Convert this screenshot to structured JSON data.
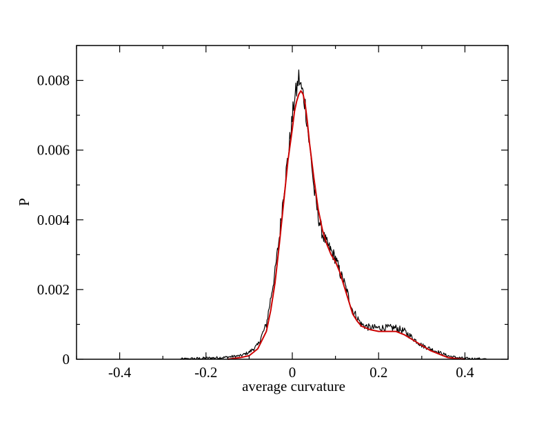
{
  "chart_data": {
    "type": "line",
    "title": "",
    "xlabel": "average curvature",
    "ylabel": "P",
    "xlim": [
      -0.5,
      0.5
    ],
    "ylim": [
      0,
      0.009
    ],
    "grid": false,
    "legend": "none",
    "x_ticks": [
      -0.4,
      -0.2,
      0,
      0.2,
      0.4
    ],
    "x_tick_labels": [
      "-0.4",
      "-0.2",
      "0",
      "0.2",
      "0.4"
    ],
    "y_ticks": [
      0,
      0.002,
      0.004,
      0.006,
      0.008
    ],
    "y_tick_labels": [
      "0",
      "0.002",
      "0.004",
      "0.006",
      "0.008"
    ],
    "series": [
      {
        "color": "#000000",
        "style": "noisy histogram",
        "x": [
          -0.26,
          -0.2,
          -0.16,
          -0.12,
          -0.1,
          -0.08,
          -0.06,
          -0.04,
          -0.03,
          -0.02,
          -0.01,
          0.0,
          0.005,
          0.01,
          0.015,
          0.02,
          0.025,
          0.03,
          0.035,
          0.04,
          0.045,
          0.05,
          0.06,
          0.07,
          0.08,
          0.09,
          0.1,
          0.11,
          0.12,
          0.13,
          0.14,
          0.16,
          0.18,
          0.2,
          0.22,
          0.24,
          0.26,
          0.28,
          0.3,
          0.32,
          0.34,
          0.36,
          0.38,
          0.4,
          0.42,
          0.45
        ],
        "y": [
          0.0,
          3e-05,
          5e-05,
          0.0001,
          0.0002,
          0.0004,
          0.001,
          0.0025,
          0.0035,
          0.0048,
          0.0058,
          0.0069,
          0.0075,
          0.0077,
          0.0081,
          0.0078,
          0.0076,
          0.0073,
          0.0067,
          0.0061,
          0.0056,
          0.0049,
          0.0041,
          0.0036,
          0.0033,
          0.0031,
          0.0029,
          0.0025,
          0.0022,
          0.0018,
          0.0014,
          0.001,
          0.0009,
          0.0009,
          0.0009,
          0.0009,
          0.0008,
          0.0006,
          0.0004,
          0.0003,
          0.0002,
          0.0001,
          5e-05,
          2e-05,
          1e-05,
          0.0
        ]
      },
      {
        "color": "#cc0000",
        "style": "smooth fit",
        "x": [
          -0.15,
          -0.12,
          -0.1,
          -0.08,
          -0.06,
          -0.05,
          -0.04,
          -0.03,
          -0.02,
          -0.01,
          0.0,
          0.005,
          0.01,
          0.015,
          0.02,
          0.025,
          0.03,
          0.035,
          0.04,
          0.05,
          0.06,
          0.07,
          0.08,
          0.09,
          0.1,
          0.11,
          0.12,
          0.13,
          0.14,
          0.15,
          0.16,
          0.18,
          0.2,
          0.22,
          0.24,
          0.26,
          0.28,
          0.3,
          0.32,
          0.34,
          0.36,
          0.38,
          0.4
        ],
        "y": [
          0.0,
          5e-05,
          0.0001,
          0.0003,
          0.0008,
          0.0014,
          0.0022,
          0.0033,
          0.0045,
          0.0057,
          0.0066,
          0.0071,
          0.0074,
          0.0076,
          0.0077,
          0.0076,
          0.0073,
          0.0068,
          0.0062,
          0.0052,
          0.0043,
          0.0037,
          0.0033,
          0.003,
          0.0028,
          0.0025,
          0.0021,
          0.0017,
          0.0013,
          0.0011,
          0.00095,
          0.00085,
          0.0008,
          0.0008,
          0.0008,
          0.0007,
          0.00055,
          0.0004,
          0.00025,
          0.00015,
          5e-05,
          2e-05,
          0.0
        ]
      }
    ]
  }
}
